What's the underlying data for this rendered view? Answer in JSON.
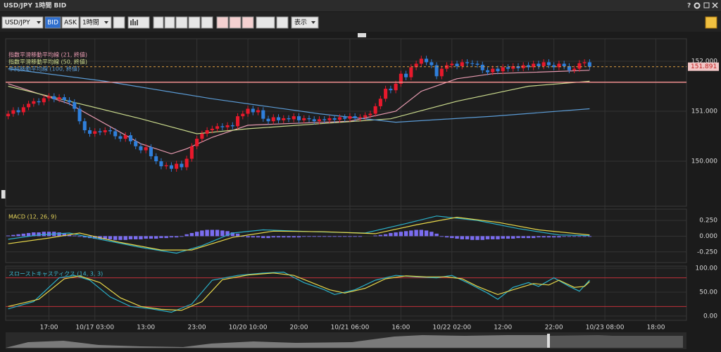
{
  "window": {
    "title": "USD/JPY 1時間 BID",
    "help": "?"
  },
  "toolbar": {
    "symbol": "USD/JPY",
    "bid": "BID",
    "ask": "ASK",
    "interval": "1時間",
    "view": "表示"
  },
  "chart_data": [
    {
      "type": "candlestick",
      "up_color": "#e8192c",
      "down_color": "#2f7fdb",
      "xlim": [
        -0.5,
        133
      ],
      "ylim": [
        149.1,
        152.45
      ],
      "xticks": [
        {
          "value": 8,
          "label": "17:00"
        },
        {
          "value": 17,
          "label": "10/17 03:00"
        },
        {
          "value": 27,
          "label": "13:00"
        },
        {
          "value": 37,
          "label": "23:00"
        },
        {
          "value": 47,
          "label": "10/20 10:00"
        },
        {
          "value": 57,
          "label": "20:00"
        },
        {
          "value": 67,
          "label": "10/21 06:00"
        },
        {
          "value": 77,
          "label": "16:00"
        },
        {
          "value": 87,
          "label": "10/22 02:00"
        },
        {
          "value": 97,
          "label": "12:00"
        },
        {
          "value": 107,
          "label": "22:00"
        },
        {
          "value": 117,
          "label": "10/23 08:00"
        },
        {
          "value": 127,
          "label": "18:00"
        }
      ],
      "yticks": [
        {
          "value": 150,
          "label": "150.000"
        },
        {
          "value": 151,
          "label": "151.000"
        },
        {
          "value": 152,
          "label": "152.000"
        }
      ],
      "grid": true,
      "current_price": 151.891,
      "reference_line": 151.58,
      "x": [
        0,
        1,
        2,
        3,
        4,
        5,
        6,
        7,
        8,
        9,
        10,
        11,
        12,
        13,
        14,
        15,
        16,
        17,
        18,
        19,
        20,
        21,
        22,
        23,
        24,
        25,
        26,
        27,
        28,
        29,
        30,
        31,
        32,
        33,
        34,
        35,
        36,
        37,
        38,
        39,
        40,
        41,
        42,
        43,
        44,
        45,
        46,
        47,
        48,
        49,
        50,
        51,
        52,
        53,
        54,
        55,
        56,
        57,
        58,
        59,
        60,
        61,
        62,
        63,
        64,
        65,
        66,
        67,
        68,
        69,
        70,
        71,
        72,
        73,
        74,
        75,
        76,
        77,
        78,
        79,
        80,
        81,
        82,
        83,
        84,
        85,
        86,
        87,
        88,
        89,
        90,
        91,
        92,
        93,
        94,
        95,
        96,
        97,
        98,
        99,
        100,
        101,
        102,
        103,
        104,
        105,
        106,
        107,
        108,
        109,
        110,
        111,
        112,
        113,
        114
      ],
      "open": [
        150.9,
        150.95,
        151.02,
        150.98,
        151.08,
        151.15,
        151.2,
        151.18,
        151.26,
        151.3,
        151.24,
        151.28,
        151.22,
        151.18,
        151.05,
        150.8,
        150.62,
        150.55,
        150.6,
        150.58,
        150.62,
        150.6,
        150.5,
        150.45,
        150.52,
        150.4,
        150.3,
        150.22,
        150.28,
        150.1,
        150.0,
        149.9,
        149.92,
        149.85,
        149.95,
        149.88,
        150.05,
        150.3,
        150.45,
        150.55,
        150.62,
        150.65,
        150.7,
        150.68,
        150.72,
        150.7,
        150.9,
        150.95,
        151.05,
        150.98,
        151.02,
        150.85,
        150.8,
        150.88,
        150.82,
        150.86,
        150.84,
        150.9,
        150.82,
        150.86,
        150.84,
        150.8,
        150.84,
        150.82,
        150.86,
        150.83,
        150.88,
        150.85,
        150.9,
        150.86,
        150.88,
        150.92,
        150.95,
        151.1,
        151.25,
        151.45,
        151.42,
        151.55,
        151.75,
        151.68,
        151.88,
        151.95,
        152.05,
        151.98,
        151.92,
        151.7,
        151.85,
        151.92,
        151.95,
        151.9,
        151.98,
        151.96,
        151.95,
        151.93,
        151.82,
        151.78,
        151.85,
        151.8,
        151.88,
        151.85,
        151.9,
        151.86,
        151.92,
        151.88,
        151.95,
        151.9,
        151.98,
        151.92,
        151.88,
        151.95,
        151.9,
        151.82,
        151.85,
        151.96,
        151.98
      ],
      "high": [
        151.01,
        151.08,
        151.08,
        151.14,
        151.21,
        151.26,
        151.26,
        151.32,
        151.36,
        151.36,
        151.34,
        151.34,
        151.28,
        151.24,
        151.11,
        150.86,
        150.68,
        150.66,
        150.66,
        150.68,
        150.68,
        150.66,
        150.56,
        150.58,
        150.58,
        150.46,
        150.36,
        150.34,
        150.34,
        150.16,
        150.06,
        149.98,
        149.98,
        150.01,
        150.01,
        150.11,
        150.36,
        150.51,
        150.61,
        150.68,
        150.71,
        150.76,
        150.76,
        150.78,
        150.78,
        150.96,
        151.01,
        151.11,
        151.11,
        151.08,
        151.08,
        150.91,
        150.94,
        150.94,
        150.92,
        150.92,
        150.96,
        150.96,
        150.92,
        150.92,
        150.9,
        150.9,
        150.9,
        150.92,
        150.92,
        150.94,
        150.94,
        150.96,
        150.96,
        150.94,
        150.98,
        151.01,
        151.16,
        151.31,
        151.51,
        151.51,
        151.61,
        151.81,
        151.81,
        151.94,
        152.01,
        152.11,
        152.11,
        152.04,
        151.98,
        151.91,
        151.98,
        152.01,
        152.01,
        152.04,
        152.04,
        152.02,
        152.01,
        151.99,
        151.88,
        151.91,
        151.91,
        151.94,
        151.94,
        151.96,
        151.96,
        151.98,
        151.98,
        152.01,
        152.01,
        152.04,
        152.04,
        151.98,
        152.01,
        152.01,
        151.96,
        151.91,
        152.02,
        152.04,
        152.04
      ],
      "low": [
        150.84,
        150.89,
        150.92,
        150.92,
        151.02,
        151.09,
        151.12,
        151.12,
        151.2,
        151.18,
        151.18,
        151.16,
        151.12,
        150.99,
        150.74,
        150.56,
        150.49,
        150.49,
        150.52,
        150.52,
        150.54,
        150.44,
        150.39,
        150.39,
        150.34,
        150.24,
        150.16,
        150.16,
        150.04,
        149.94,
        149.84,
        149.84,
        149.79,
        149.79,
        149.82,
        149.82,
        149.99,
        150.24,
        150.39,
        150.49,
        150.56,
        150.59,
        150.62,
        150.62,
        150.64,
        150.64,
        150.84,
        150.89,
        150.92,
        150.92,
        150.79,
        150.74,
        150.74,
        150.76,
        150.76,
        150.78,
        150.78,
        150.76,
        150.76,
        150.78,
        150.74,
        150.74,
        150.76,
        150.76,
        150.77,
        150.77,
        150.79,
        150.79,
        150.8,
        150.8,
        150.82,
        150.86,
        150.89,
        151.04,
        151.19,
        151.36,
        151.36,
        151.49,
        151.62,
        151.62,
        151.82,
        151.89,
        151.92,
        151.86,
        151.64,
        151.64,
        151.79,
        151.86,
        151.84,
        151.84,
        151.9,
        151.89,
        151.87,
        151.76,
        151.72,
        151.72,
        151.74,
        151.74,
        151.79,
        151.79,
        151.8,
        151.8,
        151.82,
        151.82,
        151.84,
        151.84,
        151.86,
        151.82,
        151.82,
        151.84,
        151.76,
        151.76,
        151.79,
        151.9,
        151.83
      ],
      "close": [
        150.95,
        151.02,
        150.98,
        151.08,
        151.15,
        151.2,
        151.18,
        151.26,
        151.3,
        151.24,
        151.28,
        151.22,
        151.18,
        151.05,
        150.8,
        150.62,
        150.55,
        150.6,
        150.58,
        150.62,
        150.6,
        150.5,
        150.45,
        150.52,
        150.4,
        150.3,
        150.22,
        150.28,
        150.1,
        150.0,
        149.9,
        149.92,
        149.85,
        149.95,
        149.88,
        150.05,
        150.3,
        150.45,
        150.55,
        150.62,
        150.65,
        150.7,
        150.68,
        150.72,
        150.7,
        150.9,
        150.95,
        151.05,
        150.98,
        151.02,
        150.85,
        150.8,
        150.88,
        150.82,
        150.86,
        150.84,
        150.9,
        150.82,
        150.86,
        150.84,
        150.8,
        150.84,
        150.82,
        150.86,
        150.83,
        150.88,
        150.85,
        150.9,
        150.86,
        150.88,
        150.92,
        150.95,
        151.1,
        151.25,
        151.45,
        151.42,
        151.55,
        151.75,
        151.68,
        151.88,
        151.95,
        152.05,
        151.98,
        151.92,
        151.7,
        151.85,
        151.92,
        151.95,
        151.9,
        151.98,
        151.96,
        151.95,
        151.93,
        151.82,
        151.78,
        151.85,
        151.8,
        151.88,
        151.85,
        151.9,
        151.86,
        151.92,
        151.88,
        151.95,
        151.9,
        151.98,
        151.92,
        151.88,
        151.95,
        151.9,
        151.82,
        151.85,
        151.96,
        151.98,
        151.89
      ],
      "series": [
        {
          "name": "指数平滑移動平均線 (21, 終値)",
          "color": "#e79ab0",
          "x": [
            0,
            12,
            26,
            32,
            35,
            40,
            47,
            54,
            67,
            76,
            81,
            88,
            95,
            114
          ],
          "values": [
            151.55,
            151.15,
            150.35,
            150.15,
            150.25,
            150.48,
            150.72,
            150.75,
            150.8,
            151.0,
            151.4,
            151.65,
            151.75,
            151.82
          ]
        },
        {
          "name": "指数平滑移動平均線 (50, 終値)",
          "color": "#c9d98c",
          "x": [
            0,
            12,
            26,
            37,
            47,
            61,
            75,
            88,
            102,
            114
          ],
          "values": [
            151.5,
            151.2,
            150.85,
            150.55,
            150.65,
            150.75,
            150.85,
            151.2,
            151.5,
            151.6
          ]
        },
        {
          "name": "単純移動平均線 (100, 終値)",
          "color": "#5b9bd5",
          "x": [
            0,
            19,
            40,
            61,
            76,
            95,
            114
          ],
          "values": [
            151.85,
            151.6,
            151.25,
            150.95,
            150.78,
            150.9,
            151.05
          ]
        }
      ]
    },
    {
      "type": "combo",
      "title": "MACD (12, 26, 9)",
      "title_color": "#e6d45a",
      "xlim": [
        -0.5,
        133
      ],
      "ylim": [
        -0.42,
        0.43
      ],
      "yticks": [
        {
          "value": -0.25,
          "label": "-0.250"
        },
        {
          "value": 0,
          "label": "0.000"
        },
        {
          "value": 0.25,
          "label": "0.250"
        }
      ],
      "bar_color": "#7a6cf0",
      "x": [
        0,
        1,
        2,
        3,
        4,
        5,
        6,
        7,
        8,
        9,
        10,
        11,
        12,
        13,
        14,
        15,
        16,
        17,
        18,
        19,
        20,
        21,
        22,
        23,
        24,
        25,
        26,
        27,
        28,
        29,
        30,
        31,
        32,
        33,
        34,
        35,
        36,
        37,
        38,
        39,
        40,
        41,
        42,
        43,
        44,
        45,
        46,
        47,
        48,
        49,
        50,
        51,
        52,
        53,
        54,
        55,
        56,
        57,
        58,
        59,
        60,
        61,
        62,
        63,
        64,
        65,
        66,
        67,
        68,
        69,
        70,
        71,
        72,
        73,
        74,
        75,
        76,
        77,
        78,
        79,
        80,
        81,
        82,
        83,
        84,
        85,
        86,
        87,
        88,
        89,
        90,
        91,
        92,
        93,
        94,
        95,
        96,
        97,
        98,
        99,
        100,
        101,
        102,
        103,
        104,
        105,
        106,
        107,
        108,
        109,
        110,
        111,
        112,
        113,
        114
      ],
      "histogram": [
        0.01,
        0.02,
        0.03,
        0.04,
        0.05,
        0.06,
        0.06,
        0.07,
        0.07,
        0.07,
        0.06,
        0.05,
        0.03,
        0.01,
        -0.01,
        -0.02,
        -0.03,
        -0.04,
        -0.05,
        -0.05,
        -0.05,
        -0.06,
        -0.06,
        -0.06,
        -0.05,
        -0.05,
        -0.05,
        -0.04,
        -0.04,
        -0.04,
        -0.03,
        -0.03,
        -0.02,
        -0.02,
        -0.01,
        0.03,
        0.05,
        0.07,
        0.09,
        0.1,
        0.1,
        0.1,
        0.09,
        0.08,
        0.06,
        0.04,
        -0.01,
        -0.02,
        -0.02,
        -0.02,
        -0.03,
        -0.03,
        -0.02,
        -0.02,
        -0.02,
        -0.02,
        -0.02,
        -0.02,
        -0.01,
        -0.01,
        -0.01,
        -0.01,
        -0.01,
        -0.01,
        -0.01,
        -0.01,
        -0.01,
        -0.01,
        -0.01,
        -0.01,
        0.0,
        0.0,
        0.01,
        0.02,
        0.03,
        0.05,
        0.06,
        0.07,
        0.08,
        0.09,
        0.1,
        0.1,
        0.09,
        0.07,
        0.04,
        -0.01,
        -0.02,
        -0.03,
        -0.04,
        -0.05,
        -0.05,
        -0.06,
        -0.06,
        -0.06,
        -0.05,
        -0.05,
        -0.05,
        -0.04,
        -0.04,
        -0.04,
        -0.03,
        -0.03,
        -0.03,
        -0.03,
        -0.02,
        -0.02,
        -0.02,
        -0.02,
        -0.02,
        -0.01,
        -0.01,
        -0.01,
        -0.01,
        -0.01,
        -0.01
      ],
      "series": [
        {
          "color": "#2ab0c8",
          "x": [
            0,
            6,
            12,
            18,
            26,
            33,
            38,
            44,
            50,
            60,
            70,
            78,
            84,
            92,
            100,
            108,
            114
          ],
          "values": [
            -0.05,
            0.02,
            0.05,
            -0.05,
            -0.18,
            -0.27,
            -0.15,
            0.05,
            0.1,
            0.07,
            0.05,
            0.2,
            0.32,
            0.25,
            0.12,
            0.02,
            0.01
          ]
        },
        {
          "color": "#e8d84a",
          "x": [
            0,
            8,
            14,
            22,
            30,
            36,
            44,
            52,
            62,
            72,
            80,
            88,
            96,
            104,
            114
          ],
          "values": [
            -0.12,
            -0.03,
            0.05,
            -0.1,
            -0.22,
            -0.22,
            -0.02,
            0.08,
            0.07,
            0.04,
            0.18,
            0.3,
            0.22,
            0.1,
            0.02
          ]
        }
      ]
    },
    {
      "type": "line",
      "title": "スローストキャスティクス (14, 3, 3)",
      "title_color": "#3bb8d0",
      "xlim": [
        -0.5,
        133
      ],
      "ylim": [
        -9,
        104.5
      ],
      "yticks": [
        {
          "value": 0,
          "label": "0.00"
        },
        {
          "value": 50,
          "label": "50.00"
        },
        {
          "value": 100,
          "label": "100.00"
        }
      ],
      "levels": [
        20,
        80
      ],
      "level_color": "#c0303a",
      "series": [
        {
          "color": "#2ab0c8",
          "x": [
            0,
            5,
            10,
            13,
            16,
            20,
            24,
            28,
            32,
            36,
            40,
            45,
            50,
            54,
            58,
            62,
            64,
            68,
            72,
            76,
            80,
            84,
            87,
            90,
            94,
            96,
            99,
            102,
            104,
            107,
            110,
            112,
            114
          ],
          "values": [
            15,
            30,
            80,
            85,
            75,
            40,
            20,
            15,
            8,
            25,
            75,
            85,
            90,
            92,
            70,
            55,
            45,
            55,
            75,
            85,
            82,
            80,
            85,
            70,
            48,
            35,
            60,
            70,
            62,
            80,
            62,
            52,
            75
          ]
        },
        {
          "color": "#e8d84a",
          "x": [
            0,
            6,
            11,
            14,
            18,
            22,
            26,
            30,
            34,
            38,
            42,
            47,
            52,
            56,
            60,
            63,
            66,
            70,
            74,
            78,
            82,
            86,
            89,
            92,
            96,
            99,
            103,
            106,
            108,
            111,
            113,
            114
          ],
          "values": [
            20,
            35,
            78,
            84,
            70,
            38,
            20,
            14,
            12,
            30,
            76,
            86,
            90,
            85,
            68,
            55,
            48,
            58,
            78,
            84,
            82,
            82,
            78,
            62,
            45,
            55,
            68,
            65,
            75,
            60,
            62,
            72
          ]
        }
      ]
    }
  ]
}
